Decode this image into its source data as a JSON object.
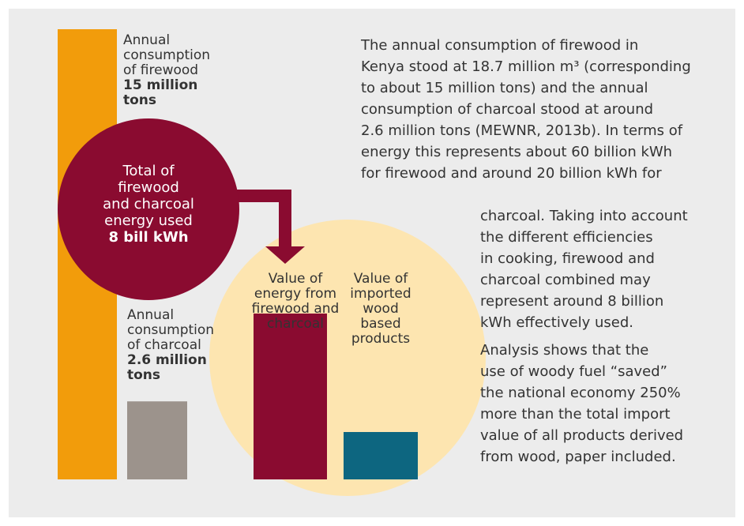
{
  "colors": {
    "panel_bg": "#ececec",
    "firewood_bar": "#f29c0b",
    "charcoal_bar": "#9c938c",
    "total_circle": "#8a0b30",
    "energy_bar": "#8a0b30",
    "imports_bar": "#0d6680",
    "value_circle": "#fde5b0",
    "arrow": "#8a0b30"
  },
  "firewood_label": {
    "line1": "Annual",
    "line2": "consumption",
    "line3": "of firewood",
    "value1": "15 million",
    "value2": "tons"
  },
  "total_label": {
    "line1": "Total of",
    "line2": "firewood",
    "line3": "and charcoal",
    "line4": "energy used",
    "value": "8 bill kWh"
  },
  "charcoal_label": {
    "line1": "Annual",
    "line2": "consumption",
    "line3": "of charcoal",
    "value1": "2.6 million",
    "value2": "tons"
  },
  "energy_label": {
    "line1": "Value of",
    "line2": "energy from",
    "line3": "firewood and",
    "line4": "charcoal"
  },
  "imports_label": {
    "line1": "Value of",
    "line2": "imported",
    "line3": "wood",
    "line4": "based",
    "line5": "products"
  },
  "text": {
    "p1_lines": [
      "The annual consumption of firewood in",
      "Kenya stood at 18.7 million m³ (corresponding",
      "to about 15 million tons) and the annual",
      "consumption of charcoal stood at around",
      "2.6 million tons (MEWNR, 2013b). In terms of",
      "energy this represents about 60 billion kWh",
      "for firewood and around 20 billion kWh for"
    ],
    "p2_lines": [
      "charcoal. Taking into account",
      "the different efficiencies",
      "in cooking, firewood and",
      "charcoal combined may",
      "represent around 8 billion",
      "kWh effectively used."
    ],
    "p3_lines": [
      "Analysis shows that the",
      "use of woody fuel “saved”",
      "the national economy 250%",
      "more than the total import",
      "value of all products derived",
      "from wood, paper included."
    ]
  },
  "chart_data": {
    "type": "bar",
    "title": "",
    "groups": [
      {
        "categories": [
          "Annual consumption of firewood",
          "Annual consumption of charcoal"
        ],
        "values": [
          15,
          2.6
        ],
        "unit": "million tons"
      },
      {
        "categories": [
          "Value of energy from firewood and charcoal",
          "Value of imported wood based products"
        ],
        "values": [
          3.5,
          1
        ]
      }
    ],
    "total_energy": {
      "value": 8,
      "unit": "bill kWh"
    }
  }
}
